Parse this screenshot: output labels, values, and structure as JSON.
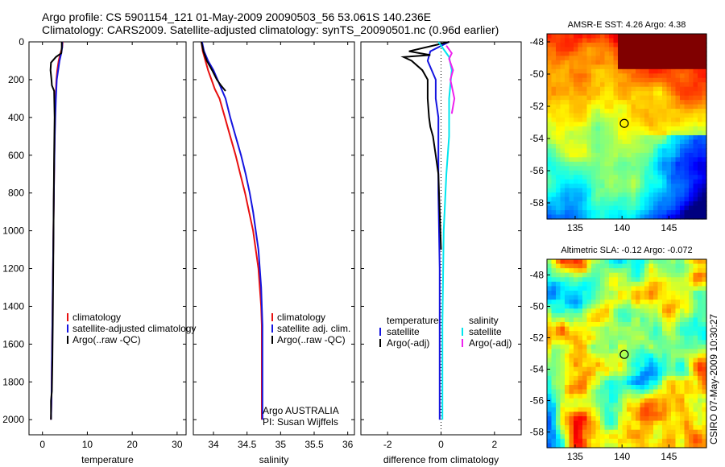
{
  "header": {
    "line1": "Argo profile: CS 5901154_121 01-May-2009 20090503_56 53.061S 140.236E",
    "line2": "Climatology: CARS2009. Satellite-adjusted climatology: synTS_20090501.nc (0.96d earlier)"
  },
  "footer_vertical": "CSIRO 07-May-2009 10:30:27",
  "chart_data": [
    {
      "type": "line",
      "id": "temperature",
      "xlabel": "temperature",
      "ylabel": "",
      "xlim": [
        -3,
        32
      ],
      "ylim": [
        0,
        2080
      ],
      "xticks": [
        0,
        10,
        20,
        30
      ],
      "yticks": [
        0,
        200,
        400,
        600,
        800,
        1000,
        1200,
        1400,
        1600,
        1800,
        2000
      ],
      "y_reversed": true,
      "legend": [
        "climatology",
        "satellite-adjusted climatology",
        "Argo(..raw -QC)"
      ],
      "series": [
        {
          "name": "climatology",
          "color": "#e81010",
          "x": [
            4.5,
            4.4,
            4.0,
            3.6,
            3.3,
            3.1,
            2.9,
            2.8,
            2.7,
            2.6,
            2.5,
            2.4,
            2.3,
            2.2,
            2.1,
            2.0,
            1.9
          ],
          "y": [
            0,
            30,
            60,
            100,
            150,
            200,
            300,
            400,
            500,
            700,
            900,
            1100,
            1300,
            1500,
            1700,
            1900,
            2000
          ]
        },
        {
          "name": "satellite-adjusted climatology",
          "color": "#1414e0",
          "x": [
            4.4,
            4.4,
            4.2,
            3.8,
            3.5,
            3.2,
            3.0,
            2.85,
            2.75,
            2.6,
            2.5,
            2.4,
            2.3,
            2.2,
            2.1,
            2.0,
            1.9
          ],
          "y": [
            0,
            30,
            60,
            100,
            150,
            200,
            300,
            400,
            500,
            700,
            900,
            1100,
            1300,
            1500,
            1700,
            1900,
            2000
          ]
        },
        {
          "name": "Argo(..raw -QC)",
          "color": "#000000",
          "x": [
            4.3,
            4.3,
            4.2,
            3.0,
            1.9,
            1.8,
            2.0,
            2.1,
            2.6,
            2.7,
            2.6,
            2.5,
            2.4,
            2.3,
            2.2,
            2.1,
            1.9,
            1.9
          ],
          "y": [
            0,
            30,
            60,
            80,
            110,
            150,
            200,
            230,
            260,
            400,
            600,
            900,
            1200,
            1500,
            1700,
            1850,
            1900,
            2000
          ]
        }
      ]
    },
    {
      "type": "line",
      "id": "salinity",
      "xlabel": "salinity",
      "ylabel": "",
      "xlim": [
        33.7,
        36.1
      ],
      "ylim": [
        0,
        2080
      ],
      "xticks": [
        34,
        34.5,
        35,
        35.5,
        36
      ],
      "y_reversed": true,
      "legend": [
        "climatology",
        "satellite adj. clim.",
        "Argo(..raw -QC)"
      ],
      "annotation": [
        "Argo AUSTRALIA",
        "PI: Susan Wijffels"
      ],
      "series": [
        {
          "name": "climatology",
          "color": "#e81010",
          "x": [
            33.82,
            33.84,
            33.88,
            33.92,
            33.97,
            34.02,
            34.09,
            34.17,
            34.25,
            34.33,
            34.4,
            34.47,
            34.53,
            34.59,
            34.63,
            34.67,
            34.69,
            34.71,
            34.72,
            34.72,
            34.72,
            34.72
          ],
          "y": [
            0,
            50,
            100,
            150,
            200,
            250,
            300,
            400,
            500,
            600,
            700,
            800,
            900,
            1000,
            1100,
            1200,
            1300,
            1400,
            1500,
            1600,
            1800,
            2000
          ]
        },
        {
          "name": "satellite adj. clim.",
          "color": "#1414e0",
          "x": [
            33.83,
            33.86,
            33.92,
            34.0,
            34.06,
            34.12,
            34.18,
            34.25,
            34.33,
            34.41,
            34.48,
            34.54,
            34.59,
            34.63,
            34.67,
            34.69,
            34.71,
            34.72,
            34.73,
            34.73,
            34.73,
            34.73
          ],
          "y": [
            0,
            50,
            100,
            150,
            200,
            250,
            300,
            400,
            500,
            600,
            700,
            800,
            900,
            1000,
            1100,
            1200,
            1300,
            1400,
            1500,
            1600,
            1800,
            2000
          ]
        },
        {
          "name": "Argo(..raw -QC)",
          "color": "#000000",
          "x": [
            33.82,
            33.85,
            33.9,
            33.98,
            34.05,
            34.11,
            34.18
          ],
          "y": [
            0,
            50,
            100,
            150,
            200,
            230,
            260
          ]
        }
      ]
    },
    {
      "type": "line",
      "id": "difference",
      "xlabel": "difference from climatology",
      "ylabel": "",
      "xlim": [
        -3,
        3
      ],
      "ylim": [
        0,
        2080
      ],
      "xticks": [
        -2,
        0,
        2
      ],
      "y_reversed": true,
      "legend_temperature": {
        "title": "temperature",
        "items": [
          "satellite",
          "Argo(-adj)"
        ]
      },
      "legend_salinity": {
        "title": "salinity",
        "items": [
          "satellite",
          "Argo(-adj)"
        ]
      },
      "series": [
        {
          "name": "temperature satellite",
          "color": "#1414e0",
          "x": [
            0.3,
            -0.4,
            -0.5,
            -0.2,
            -0.2,
            -0.1,
            -0.1,
            -0.1,
            -0.05,
            -0.05,
            -0.05
          ],
          "y": [
            0,
            50,
            100,
            200,
            300,
            400,
            600,
            800,
            1200,
            1600,
            2000
          ]
        },
        {
          "name": "temperature Argo(-adj)",
          "color": "#000000",
          "x": [
            0.3,
            -1.2,
            -0.4,
            -1.4,
            -1.1,
            -0.7,
            -0.5,
            -0.5,
            -0.45,
            -0.4,
            -0.3,
            -0.2,
            -0.1,
            -0.05,
            0.0
          ],
          "y": [
            0,
            50,
            70,
            80,
            100,
            150,
            200,
            300,
            400,
            450,
            500,
            600,
            700,
            900,
            1100
          ]
        },
        {
          "name": "salinity satellite",
          "color": "#00e5ee",
          "x": [
            -0.1,
            0.3,
            0.4,
            0.3,
            0.3,
            0.2,
            0.1,
            0.05,
            0.05
          ],
          "y": [
            0,
            80,
            150,
            300,
            500,
            700,
            1000,
            1500,
            2000
          ]
        },
        {
          "name": "salinity Argo(-adj)",
          "color": "#ee22ee",
          "x": [
            0.2,
            0.4,
            0.3,
            0.45,
            0.35,
            0.5,
            0.4
          ],
          "y": [
            20,
            60,
            90,
            150,
            200,
            300,
            380
          ]
        }
      ]
    },
    {
      "type": "heatmap",
      "id": "sst_map",
      "title": "AMSR-E SST: 4.26 Argo: 4.38",
      "xlim": [
        132,
        149
      ],
      "ylim": [
        -59,
        -47.5
      ],
      "xticks": [
        135,
        140,
        145
      ],
      "yticks": [
        -48,
        -50,
        -52,
        -54,
        -56,
        -58
      ],
      "marker": {
        "lon": 140.236,
        "lat": -53.061
      }
    },
    {
      "type": "heatmap",
      "id": "sla_map",
      "title": "Altimetric SLA: -0.12 Argo: -0.072",
      "xlim": [
        132,
        149
      ],
      "ylim": [
        -59,
        -47
      ],
      "xticks": [
        135,
        140,
        145
      ],
      "yticks": [
        -48,
        -50,
        -52,
        -54,
        -56,
        -58
      ],
      "marker": {
        "lon": 140.236,
        "lat": -53.061
      }
    }
  ]
}
